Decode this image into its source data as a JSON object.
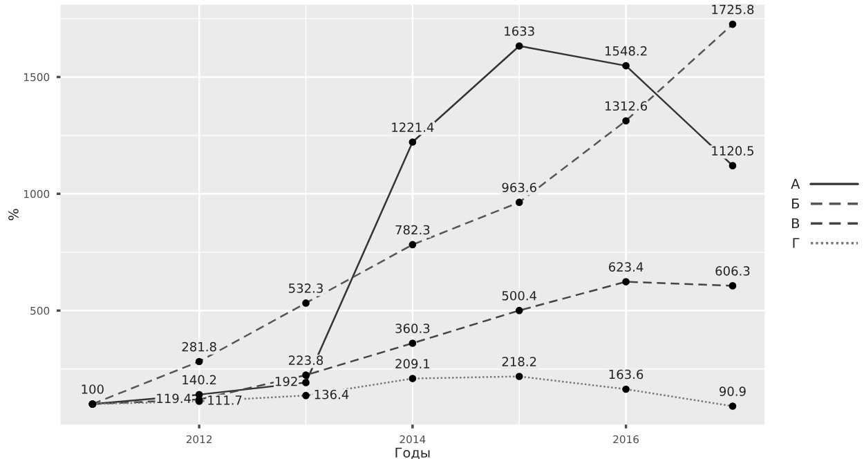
{
  "chart_data": {
    "type": "line",
    "xlabel": "Годы",
    "ylabel": "%",
    "x": [
      2011,
      2012,
      2013,
      2014,
      2015,
      2016,
      2017
    ],
    "series": [
      {
        "name": "А",
        "color": "#333333",
        "line_style": "solid",
        "values": [
          100,
          140.2,
          192,
          1221.4,
          1633,
          1548.2,
          1120.5
        ]
      },
      {
        "name": "Б",
        "color": "#555555",
        "line_style": "dashed",
        "values": [
          100,
          281.8,
          532.3,
          782.3,
          963.6,
          1312.6,
          1725.8
        ],
        "value_labels": [
          null,
          "281.8",
          "532.3",
          "782.3",
          "963.6",
          "1312.6",
          "1725.8"
        ]
      },
      {
        "name": "В",
        "color": "#444444",
        "line_style": "dashed",
        "values": [
          100,
          119.4,
          223.8,
          360.3,
          500.4,
          623.4,
          606.3
        ],
        "value_labels": [
          null,
          "119.4",
          "223.8",
          "360.3",
          "500.4",
          "623.4",
          "606.3"
        ]
      },
      {
        "name": "Г",
        "color": "#777777",
        "line_style": "dotted",
        "values": [
          100,
          111.7,
          136.4,
          209.1,
          218.2,
          163.6,
          90.9
        ],
        "value_labels": [
          null,
          "111.7",
          "136.4",
          "209.1",
          "218.2",
          "163.6",
          "90.9"
        ]
      }
    ],
    "xlim": [
      2010.7,
      2017.3
    ],
    "xticks": [
      2012,
      2014,
      2016
    ],
    "ylim": [
      12,
      1810
    ],
    "yticks": [
      500,
      1000,
      1500
    ],
    "grid": true,
    "legend": "right",
    "marker": "circle",
    "data_labels": true
  }
}
